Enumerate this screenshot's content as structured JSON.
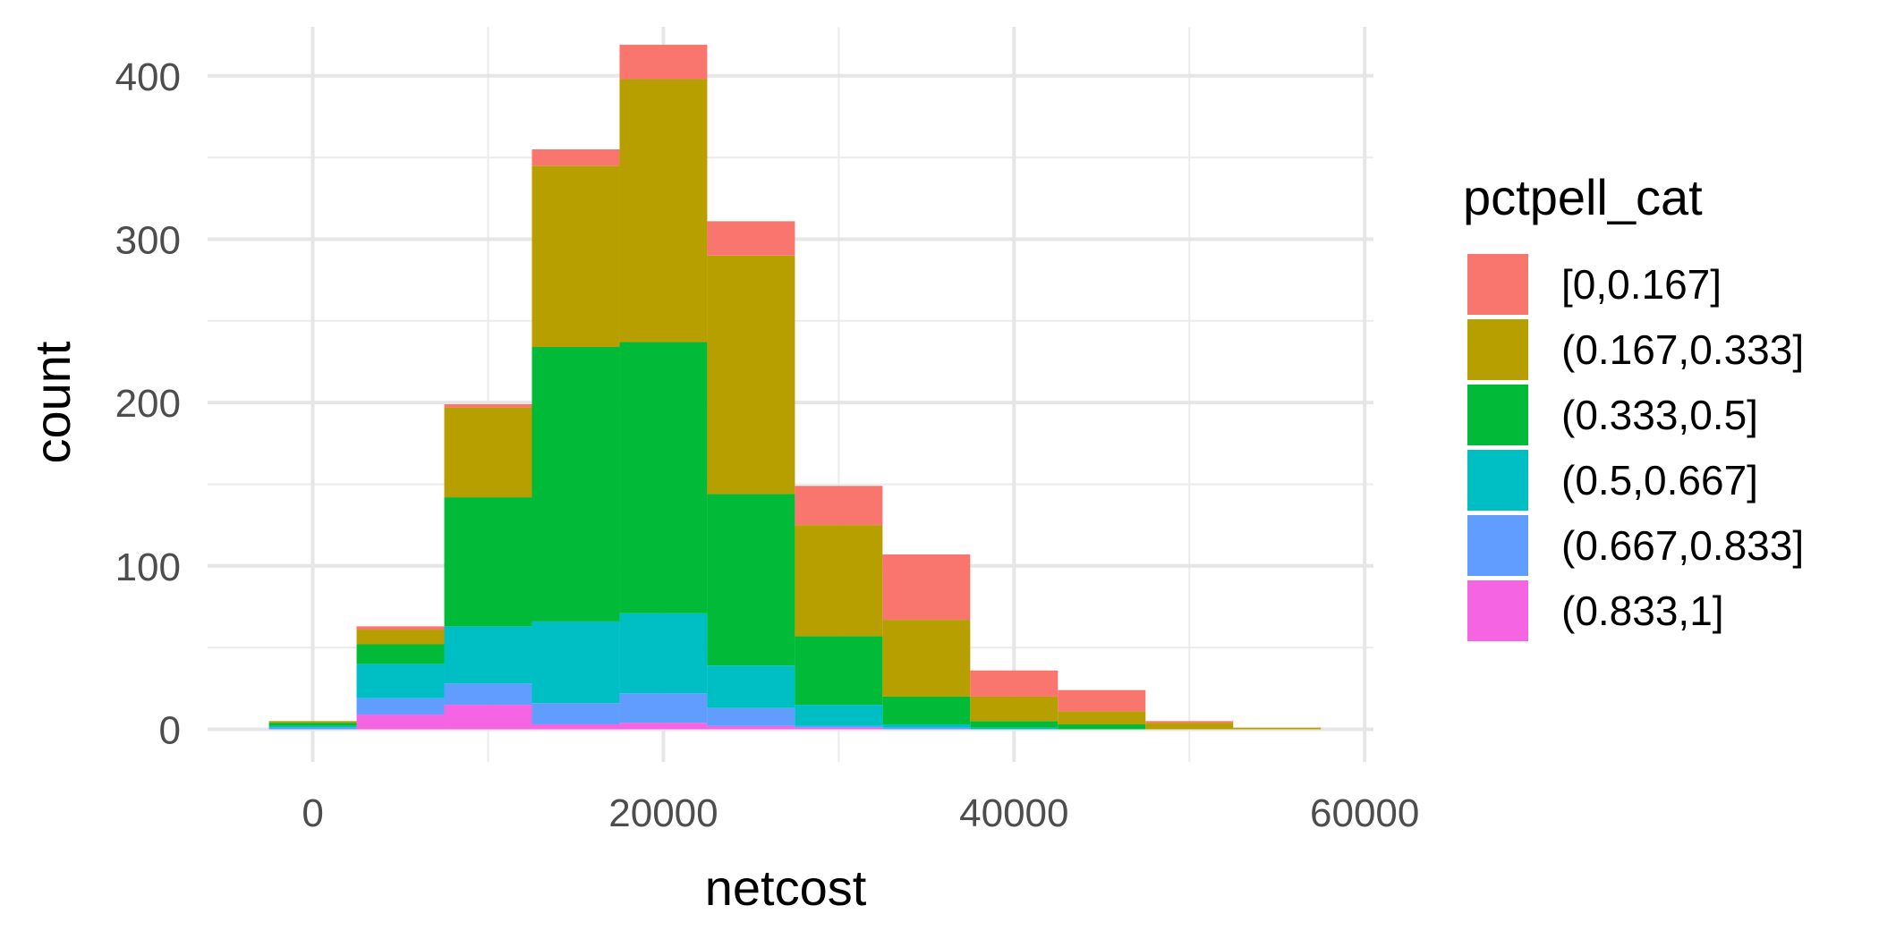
{
  "chart_data": {
    "type": "bar",
    "subtype": "stacked-histogram",
    "xlabel": "netcost",
    "ylabel": "count",
    "xlim": [
      -6000,
      60500
    ],
    "ylim": [
      -20,
      430
    ],
    "x_ticks": [
      0,
      20000,
      40000,
      60000
    ],
    "y_ticks": [
      0,
      100,
      200,
      300,
      400
    ],
    "grid": true,
    "legend": {
      "title": "pctpell_cat",
      "position": "right"
    },
    "bins": [
      {
        "x_start": -2500,
        "x_end": 2500
      },
      {
        "x_start": 2500,
        "x_end": 7500
      },
      {
        "x_start": 7500,
        "x_end": 12500
      },
      {
        "x_start": 12500,
        "x_end": 17500
      },
      {
        "x_start": 17500,
        "x_end": 22500
      },
      {
        "x_start": 22500,
        "x_end": 27500
      },
      {
        "x_start": 27500,
        "x_end": 32500
      },
      {
        "x_start": 32500,
        "x_end": 37500
      },
      {
        "x_start": 37500,
        "x_end": 42500
      },
      {
        "x_start": 42500,
        "x_end": 47500
      },
      {
        "x_start": 47500,
        "x_end": 52500
      },
      {
        "x_start": 52500,
        "x_end": 57500
      }
    ],
    "series": [
      {
        "name": "[0,0.167]",
        "color": "#F8766D",
        "values": [
          0,
          2,
          2,
          10,
          21,
          21,
          24,
          40,
          16,
          13,
          1,
          0
        ]
      },
      {
        "name": "(0.167,0.333]",
        "color": "#B79F00",
        "values": [
          1,
          9,
          55,
          111,
          161,
          146,
          68,
          47,
          15,
          8,
          4,
          1
        ]
      },
      {
        "name": "(0.333,0.5]",
        "color": "#00BA38",
        "values": [
          2,
          12,
          79,
          168,
          166,
          105,
          42,
          17,
          4,
          3,
          0,
          0
        ]
      },
      {
        "name": "(0.5,0.667]",
        "color": "#00BFC4",
        "values": [
          1,
          21,
          35,
          50,
          49,
          26,
          13,
          2,
          1,
          0,
          0,
          0
        ]
      },
      {
        "name": "(0.667,0.833]",
        "color": "#619CFF",
        "values": [
          1,
          10,
          13,
          13,
          18,
          11,
          1,
          1,
          0,
          0,
          0,
          0
        ]
      },
      {
        "name": "(0.833,1]",
        "color": "#F564E3",
        "values": [
          0,
          9,
          15,
          3,
          4,
          2,
          1,
          0,
          0,
          0,
          0,
          0
        ]
      }
    ]
  }
}
